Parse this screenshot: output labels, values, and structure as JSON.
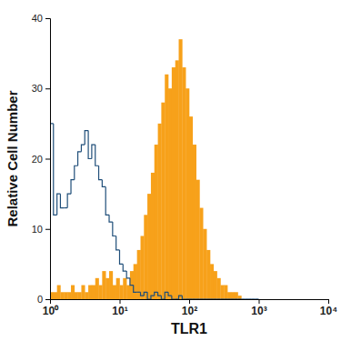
{
  "chart_data": {
    "type": "histogram",
    "x_label": "TLR1",
    "y_label": "Relative Cell Number",
    "log": "x",
    "xlim": [
      1,
      10000
    ],
    "ylim": [
      0,
      40
    ],
    "xticks": [
      {
        "value": 1,
        "label": "10⁰"
      },
      {
        "value": 10,
        "label": "10¹"
      },
      {
        "value": 100,
        "label": "10²"
      },
      {
        "value": 1000,
        "label": "10³"
      },
      {
        "value": 10000,
        "label": "10⁴"
      }
    ],
    "yticks": [
      0,
      10,
      20,
      30,
      40
    ],
    "bins": [
      1,
      1.12,
      1.26,
      1.41,
      1.58,
      1.78,
      2.0,
      2.24,
      2.51,
      2.82,
      3.16,
      3.55,
      3.98,
      4.47,
      5.01,
      5.62,
      6.31,
      7.08,
      7.94,
      8.91,
      10,
      11.2,
      12.6,
      14.1,
      15.8,
      17.8,
      20.0,
      22.4,
      25.1,
      28.2,
      31.6,
      35.5,
      39.8,
      44.7,
      50.1,
      56.2,
      63.1,
      70.8,
      79.4,
      89.1,
      100,
      112,
      126,
      141,
      158,
      178,
      200,
      224,
      251,
      282,
      316,
      355,
      398,
      447,
      501,
      562,
      631,
      708,
      794,
      891,
      1000
    ],
    "series": [
      {
        "type": "bar",
        "color": "#f7a11a",
        "values": [
          1,
          1,
          2,
          1,
          1,
          1,
          2,
          1,
          1,
          2,
          1,
          2,
          2,
          3,
          2,
          4,
          3,
          4,
          2,
          3,
          2,
          3,
          2,
          4,
          5,
          7,
          9,
          12,
          15,
          18,
          22,
          25,
          28,
          32,
          30,
          33,
          34,
          37,
          33,
          30,
          26,
          22,
          17,
          13,
          10,
          7,
          5,
          4,
          3,
          2,
          2,
          1,
          1,
          1,
          0.5,
          0,
          0,
          0,
          0,
          0
        ]
      },
      {
        "type": "step",
        "color": "#1f4e79",
        "values": [
          25,
          12,
          15,
          13,
          13,
          15,
          17,
          19,
          21,
          22,
          24,
          20,
          22,
          19,
          17,
          16,
          12,
          11,
          9,
          7,
          5,
          4,
          3,
          2,
          1,
          1,
          0.5,
          1,
          0,
          0.5,
          1,
          0.5,
          0,
          1,
          0.5,
          0,
          0,
          0.5,
          0,
          0,
          0,
          0,
          0,
          0,
          0,
          0,
          0,
          0,
          0,
          0,
          0,
          0,
          0,
          0,
          0,
          0,
          0,
          0,
          0,
          0
        ]
      }
    ]
  }
}
